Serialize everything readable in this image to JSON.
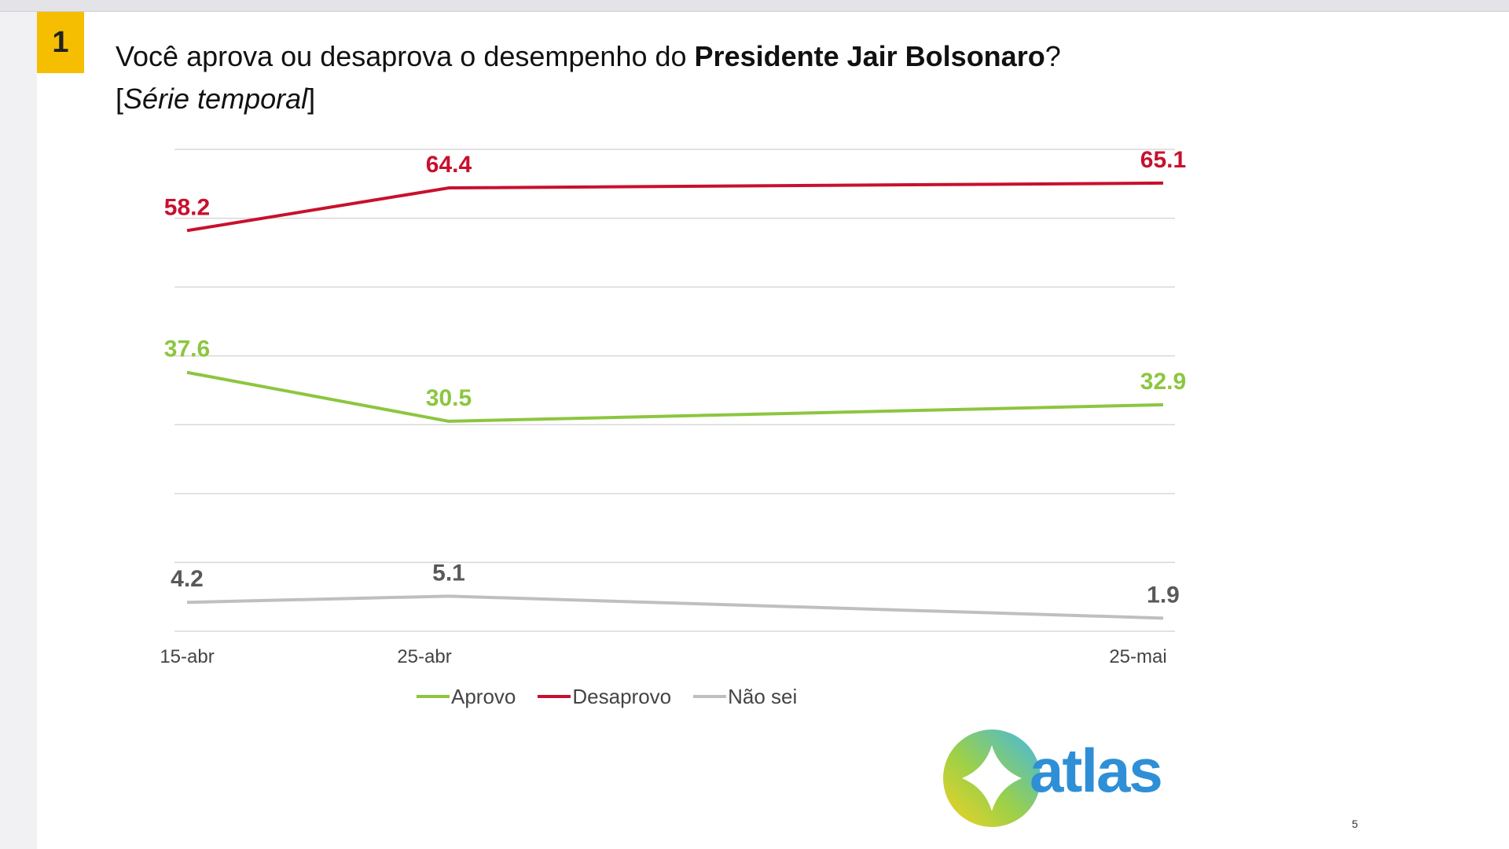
{
  "slide": {
    "number": "1",
    "title_plain": "Você aprova ou desaprova o desempenho do ",
    "title_bold": "Presidente Jair Bolsonaro",
    "title_end": "?",
    "subtitle_open": "[",
    "subtitle_italic": "Série temporal",
    "subtitle_close": "]",
    "logo_text": "atlas",
    "page_number": "5"
  },
  "chart_data": {
    "type": "line",
    "x": [
      "15-abr",
      "25-abr",
      "25-mai"
    ],
    "ylim": [
      0,
      70
    ],
    "grid": true,
    "legend_position": "bottom",
    "series": [
      {
        "name": "Aprovo",
        "values": [
          37.6,
          30.5,
          32.9
        ],
        "labels": [
          "37.6",
          "30.5",
          "32.9"
        ],
        "color": "#8cc63f"
      },
      {
        "name": "Desaprovo",
        "values": [
          58.2,
          64.4,
          65.1
        ],
        "labels": [
          "58.2",
          "64.4",
          "65.1"
        ],
        "color": "#c8102e"
      },
      {
        "name": "Não sei",
        "values": [
          4.2,
          5.1,
          1.9
        ],
        "labels": [
          "4.2",
          "5.1",
          "1.9"
        ],
        "color": "#bfbfbf",
        "label_color": "#595959"
      }
    ]
  },
  "colors": {
    "badge": "#f6be00",
    "logo_blue": "#2f8fd6"
  }
}
